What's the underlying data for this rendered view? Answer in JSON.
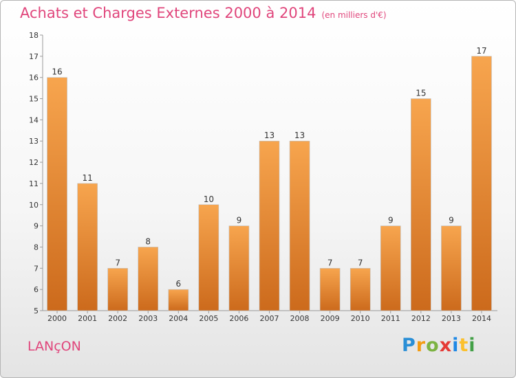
{
  "header": {
    "title": "Achats et Charges Externes 2000 à 2014",
    "subtitle": "(en milliers d'€)"
  },
  "footer": {
    "commune": "LANçON",
    "logo_letters": [
      "P",
      "r",
      "o",
      "x",
      "i",
      "t",
      "i"
    ],
    "logo_colors": [
      "#2a8fd6",
      "#f39c12",
      "#7cb342",
      "#e53935",
      "#1e88e5",
      "#fbc02d",
      "#43a047"
    ]
  },
  "chart_data": {
    "type": "bar",
    "title": "Achats et Charges Externes 2000 à 2014",
    "subtitle": "(en milliers d'€)",
    "categories": [
      "2000",
      "2001",
      "2002",
      "2003",
      "2004",
      "2005",
      "2006",
      "2007",
      "2008",
      "2009",
      "2010",
      "2011",
      "2012",
      "2013",
      "2014"
    ],
    "values": [
      16,
      11,
      7,
      8,
      6,
      10,
      9,
      13,
      13,
      7,
      7,
      9,
      15,
      9,
      17
    ],
    "ylim": [
      5,
      18
    ],
    "yticks": [
      "5",
      "6",
      "7",
      "8",
      "9",
      "10",
      "11",
      "12",
      "13",
      "14",
      "15",
      "16",
      "17",
      "18"
    ],
    "grid": false,
    "bar_color_top": "#f7a54e",
    "bar_color_bottom": "#cc6a1c"
  }
}
